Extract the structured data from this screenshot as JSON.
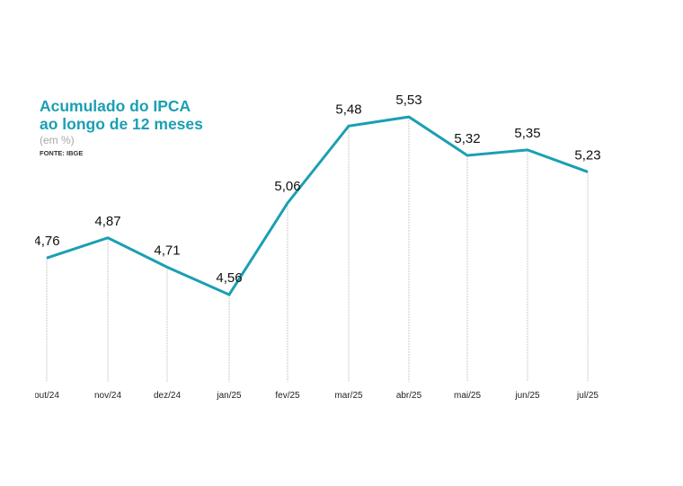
{
  "chart_data": {
    "type": "line",
    "title": "Acumulado do IPCA ao longo de 12 meses",
    "title_lines": [
      "Acumulado do IPCA",
      "ao longo de 12 meses"
    ],
    "subtitle": "(em %)",
    "source": "FONTE: IBGE",
    "categories": [
      "out/24",
      "nov/24",
      "dez/24",
      "jan/25",
      "fev/25",
      "mar/25",
      "abr/25",
      "mai/25",
      "jun/25",
      "jul/25"
    ],
    "values": [
      4.76,
      4.87,
      4.71,
      4.56,
      5.06,
      5.48,
      5.53,
      5.32,
      5.35,
      5.23
    ],
    "data_labels": [
      "4,76",
      "4,87",
      "4,71",
      "4,56",
      "5,06",
      "5,48",
      "5,53",
      "5,32",
      "5,35",
      "5,23"
    ],
    "grid": false,
    "legend": "none",
    "colors": {
      "line": "#1b9fb3",
      "title": "#1b9fb3",
      "drop_lines": "#c8c8c8"
    }
  }
}
